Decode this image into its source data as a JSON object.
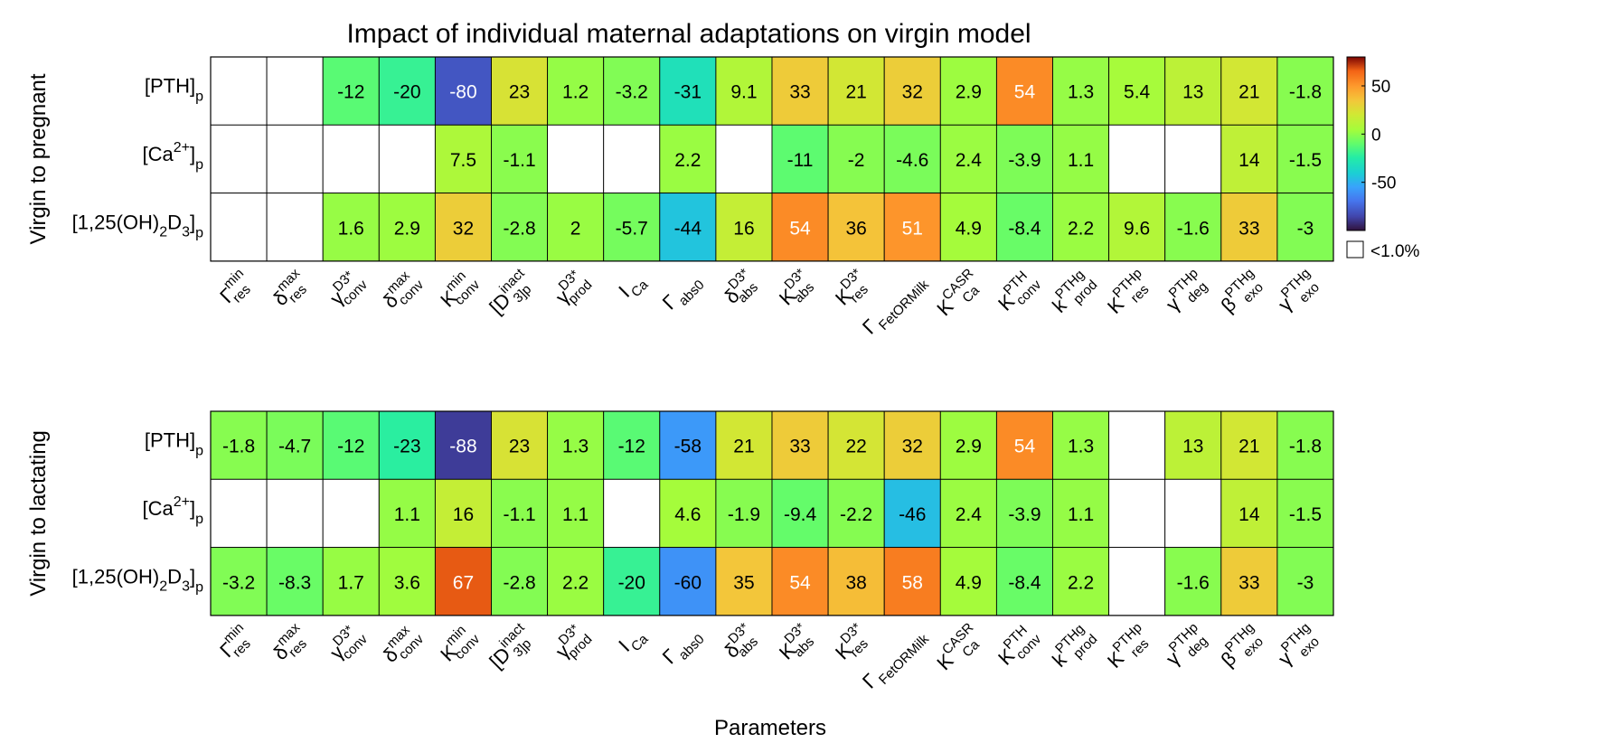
{
  "chart_data": {
    "type": "heatmap",
    "title": "Impact of individual maternal adaptations on virgin model",
    "xlabel": "Parameters",
    "colorbar": {
      "ticks": [
        50,
        0,
        -50
      ],
      "range": [
        -100,
        80
      ],
      "legend_label": "<1.0%",
      "legend_color": "#ffffff"
    },
    "x_tick_labels": [
      {
        "base": "Γ",
        "sup": "min",
        "sub": "res"
      },
      {
        "base": "δ",
        "sup": "max",
        "sub": "res"
      },
      {
        "base": "γ",
        "sup": "D3*",
        "sub": "conv"
      },
      {
        "base": "δ",
        "sup": "max",
        "sub": "conv"
      },
      {
        "base": "K",
        "sup": "min",
        "sub": "conv"
      },
      {
        "base": "[D",
        "sup": "inact",
        "sub": "3]p"
      },
      {
        "base": "γ",
        "sup": "D3*",
        "sub": "prod"
      },
      {
        "base": "I",
        "sup": "",
        "sub": "Ca"
      },
      {
        "base": "Γ",
        "sup": "",
        "sub": "abs0"
      },
      {
        "base": "δ",
        "sup": "D3*",
        "sub": "abs"
      },
      {
        "base": "K",
        "sup": "D3*",
        "sub": "abs"
      },
      {
        "base": "K",
        "sup": "D3*",
        "sub": "res"
      },
      {
        "base": "Γ",
        "sup": "",
        "sub": "FetORMilk"
      },
      {
        "base": "K",
        "sup": "CASR",
        "sub": "Ca"
      },
      {
        "base": "K",
        "sup": "PTH",
        "sub": "conv"
      },
      {
        "base": "k",
        "sup": "PTHg",
        "sub": "prod"
      },
      {
        "base": "K",
        "sup": "PTHp",
        "sub": "res"
      },
      {
        "base": "γ",
        "sup": "PTHp",
        "sub": "deg"
      },
      {
        "base": "β",
        "sup": "PTHg",
        "sub": "exo"
      },
      {
        "base": "γ",
        "sup": "PTHg",
        "sub": "exo"
      }
    ],
    "panels": [
      {
        "ylabel": "Virgin to pregnant",
        "row_labels": [
          {
            "main": "[PTH]",
            "sup": "",
            "sub": "p"
          },
          {
            "main": "[Ca",
            "sup": "2+",
            "post": "]",
            "sub": "p"
          },
          {
            "main": "[1,25(OH)",
            "sub1": "2",
            "mid": "D",
            "sub2": "3",
            "post": "]",
            "sub": "p"
          }
        ],
        "values": [
          [
            null,
            null,
            -12,
            -20,
            -80,
            23,
            1.2,
            -3.2,
            -31,
            9.1,
            33,
            21,
            32,
            2.9,
            54,
            1.3,
            5.4,
            13,
            21,
            -1.8
          ],
          [
            null,
            null,
            null,
            null,
            7.5,
            -1.1,
            null,
            null,
            2.2,
            null,
            -11,
            -2,
            -4.6,
            2.4,
            -3.9,
            1.1,
            null,
            null,
            14,
            -1.5
          ],
          [
            null,
            null,
            1.6,
            2.9,
            32,
            -2.8,
            2,
            -5.7,
            -44,
            16,
            54,
            36,
            51,
            4.9,
            -8.4,
            2.2,
            9.6,
            -1.6,
            33,
            -3
          ]
        ]
      },
      {
        "ylabel": "Virgin to lactating",
        "row_labels": [
          {
            "main": "[PTH]",
            "sup": "",
            "sub": "p"
          },
          {
            "main": "[Ca",
            "sup": "2+",
            "post": "]",
            "sub": "p"
          },
          {
            "main": "[1,25(OH)",
            "sub1": "2",
            "mid": "D",
            "sub2": "3",
            "post": "]",
            "sub": "p"
          }
        ],
        "values": [
          [
            -1.8,
            -4.7,
            -12,
            -23,
            -88,
            23,
            1.3,
            -12,
            -58,
            21,
            33,
            22,
            32,
            2.9,
            54,
            1.3,
            null,
            13,
            21,
            -1.8
          ],
          [
            null,
            null,
            null,
            1.1,
            16,
            -1.1,
            1.1,
            null,
            4.6,
            -1.9,
            -9.4,
            -2.2,
            -46,
            2.4,
            -3.9,
            1.1,
            null,
            null,
            14,
            -1.5
          ],
          [
            -3.2,
            -8.3,
            1.7,
            3.6,
            67,
            -2.8,
            2.2,
            -20,
            -60,
            35,
            54,
            38,
            58,
            4.9,
            -8.4,
            2.2,
            null,
            -1.6,
            33,
            -3
          ]
        ]
      }
    ]
  }
}
